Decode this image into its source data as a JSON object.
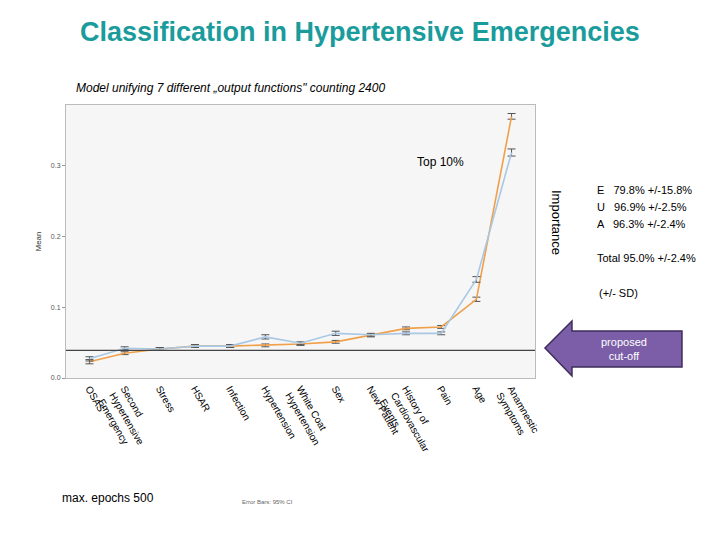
{
  "chart_data": {
    "type": "line",
    "title": "Classification in Hypertensive Emergencies",
    "subtitle": "Model unifying 7 different „output functions\" counting 2400",
    "y_label": "Mean",
    "categories": [
      "OSAS",
      "Second Hypertensive Emergency",
      "Stress",
      "HSAR",
      "Infection",
      "Hypertension",
      "White Coat Hypertension",
      "Sex",
      "New Patient",
      "History of Cardiovascular Events",
      "Pain",
      "Age",
      "Anamnestic Symptoms"
    ],
    "series": [
      {
        "color": "#f0a04b",
        "values": [
          0.023,
          0.035,
          0.041,
          0.045,
          0.045,
          0.046,
          0.048,
          0.051,
          0.06,
          0.07,
          0.072,
          0.111,
          0.369
        ],
        "errors": [
          0.003,
          0.002,
          0.002,
          0.002,
          0.002,
          0.002,
          0.002,
          0.002,
          0.002,
          0.002,
          0.002,
          0.003,
          0.004
        ]
      },
      {
        "color": "#a8c8e4",
        "values": [
          0.027,
          0.042,
          0.041,
          0.045,
          0.045,
          0.058,
          0.049,
          0.063,
          0.061,
          0.063,
          0.063,
          0.139,
          0.318
        ],
        "errors": [
          0.003,
          0.002,
          0.002,
          0.002,
          0.002,
          0.003,
          0.002,
          0.003,
          0.002,
          0.002,
          0.002,
          0.004,
          0.005
        ]
      }
    ],
    "ylim": [
      0,
      0.385
    ],
    "yticks": [
      {
        "value": 0,
        "label": "0.0"
      },
      0.1,
      0.2,
      0.3
    ],
    "grid": false,
    "cutoff": {
      "value": 0.039,
      "label": "proposed cut-off"
    },
    "top_label": "Top 10%",
    "side_label": "Importance",
    "metrics": [
      "E   79.8% +/-15.8%",
      "U   96.9% +/-2.5%",
      "A   96.3% +/-2.4%"
    ],
    "total": "Total 95.0% +/-2.4%",
    "sd_note": "(+/- SD)",
    "footnote": "max. epochs 500",
    "error_note": "Error Bars: 95% CI"
  }
}
